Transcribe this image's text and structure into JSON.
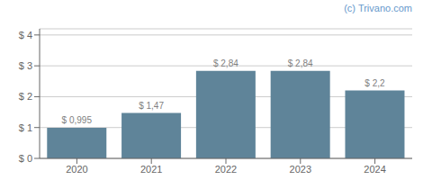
{
  "chart_data": {
    "type": "bar",
    "categories": [
      "2020",
      "2021",
      "2022",
      "2023",
      "2024"
    ],
    "values": [
      0.995,
      1.47,
      2.84,
      2.84,
      2.2
    ],
    "value_labels": [
      "$ 0,995",
      "$ 1,47",
      "$ 2,84",
      "$ 2,84",
      "$ 2,2"
    ],
    "data_labels": true,
    "color": "#5f8499",
    "ylim": [
      0,
      4.2
    ],
    "yticks": [
      {
        "value": 0,
        "label": "$ 0"
      },
      {
        "value": 1,
        "label": "$ 1"
      },
      {
        "value": 2,
        "label": "$ 2"
      },
      {
        "value": 3,
        "label": "$ 3"
      },
      {
        "value": 4,
        "label": "$ 4"
      }
    ],
    "grid": true,
    "annotations": [
      {
        "text": "(c) Trivano.com",
        "color": "#6699cc"
      }
    ]
  }
}
